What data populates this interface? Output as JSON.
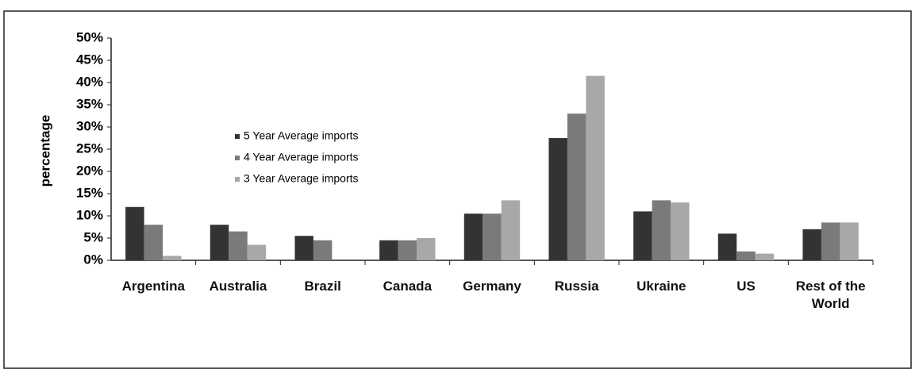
{
  "chart_data": {
    "type": "bar",
    "y_label": "percentage",
    "categories": [
      "Argentina",
      "Australia",
      "Brazil",
      "Canada",
      "Germany",
      "Russia",
      "Ukraine",
      "US",
      "Rest of the World"
    ],
    "series": [
      {
        "name": "5 Year Average imports",
        "color": "#333333",
        "values": [
          12,
          8,
          5.5,
          4.5,
          10.5,
          27.5,
          11,
          6,
          7
        ]
      },
      {
        "name": "4 Year Average imports",
        "color": "#7a7a7a",
        "values": [
          8,
          6.5,
          4.5,
          4.5,
          10.5,
          33,
          13.5,
          2,
          8.5
        ]
      },
      {
        "name": "3 Year Average imports",
        "color": "#a8a8a8",
        "values": [
          1,
          3.5,
          0,
          5,
          13.5,
          41.5,
          13,
          1.5,
          8.5
        ]
      }
    ],
    "ylim": [
      0,
      50
    ],
    "yticks": [
      {
        "value": 0,
        "label": "0%"
      },
      {
        "value": 5,
        "label": "5%"
      },
      {
        "value": 10,
        "label": "10%"
      },
      {
        "value": 15,
        "label": "15%"
      },
      {
        "value": 20,
        "label": "20%"
      },
      {
        "value": 25,
        "label": "25%"
      },
      {
        "value": 30,
        "label": "30%"
      },
      {
        "value": 35,
        "label": "35%"
      },
      {
        "value": 40,
        "label": "40%"
      },
      {
        "value": 45,
        "label": "45%"
      },
      {
        "value": 50,
        "label": "50%"
      }
    ],
    "legend": "inside-left"
  }
}
